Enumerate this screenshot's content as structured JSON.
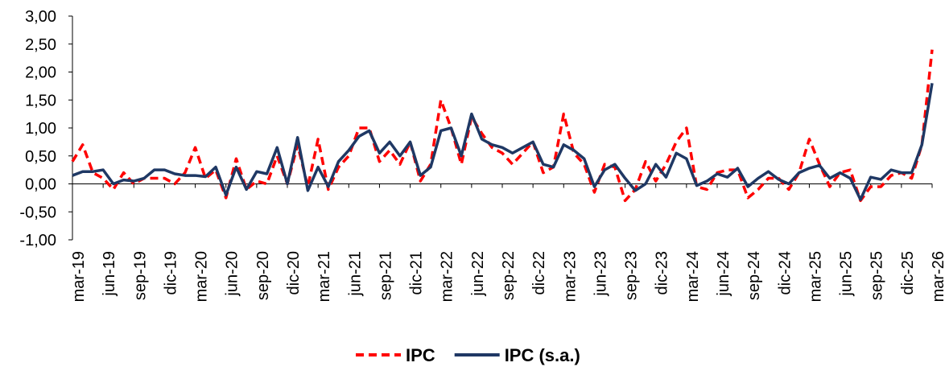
{
  "chart_data": {
    "type": "line",
    "categories": [
      "mar-19",
      null,
      null,
      "jun-19",
      null,
      null,
      "sep-19",
      null,
      null,
      "dic-19",
      null,
      null,
      "mar-20",
      null,
      null,
      "jun-20",
      null,
      null,
      "sep-20",
      null,
      null,
      "dic-20",
      null,
      null,
      "mar-21",
      null,
      null,
      "jun-21",
      null,
      null,
      "sep-21",
      null,
      null,
      "dic-21",
      null,
      null,
      "mar-22",
      null,
      null,
      "jun-22",
      null,
      null,
      "sep-22",
      null,
      null,
      "dic-22",
      null,
      null,
      "mar-23",
      null,
      null,
      "jun-23",
      null,
      null,
      "sep-23",
      null,
      null,
      "dic-23",
      null,
      null,
      "mar-24",
      null,
      null,
      "jun-24",
      null,
      null,
      "sep-24",
      null,
      null,
      "dic-24",
      null,
      null,
      "mar-25",
      null,
      null,
      "jun-25",
      null,
      null,
      "sep-25",
      null,
      null,
      "dic-25",
      null,
      null,
      "mar-26"
    ],
    "series": [
      {
        "name": "IPC",
        "color": "#ff0000",
        "dashed": true,
        "values": [
          0.4,
          0.7,
          0.2,
          0.1,
          -0.1,
          0.2,
          0.0,
          0.1,
          0.1,
          0.1,
          0.0,
          0.2,
          0.65,
          0.1,
          0.25,
          -0.25,
          0.45,
          -0.1,
          0.05,
          0.0,
          0.5,
          0.0,
          0.7,
          -0.05,
          0.8,
          -0.1,
          0.3,
          0.5,
          1.0,
          1.0,
          0.4,
          0.6,
          0.35,
          0.75,
          0.05,
          0.35,
          1.5,
          1.0,
          0.35,
          1.2,
          0.9,
          0.65,
          0.55,
          0.35,
          0.55,
          0.75,
          0.2,
          0.3,
          1.25,
          0.55,
          0.35,
          -0.15,
          0.35,
          0.3,
          -0.3,
          -0.1,
          0.4,
          0.05,
          0.35,
          0.75,
          1.0,
          -0.05,
          -0.1,
          0.2,
          0.25,
          0.25,
          -0.25,
          -0.1,
          0.1,
          0.1,
          -0.1,
          0.2,
          0.8,
          0.35,
          -0.05,
          0.2,
          0.25,
          -0.3,
          -0.05,
          -0.05,
          0.15,
          0.2,
          0.1,
          0.7,
          2.4
        ]
      },
      {
        "name": "IPC (s.a.)",
        "color": "#1f3864",
        "dashed": false,
        "values": [
          0.15,
          0.22,
          0.22,
          0.25,
          0.0,
          0.07,
          0.05,
          0.1,
          0.25,
          0.25,
          0.18,
          0.15,
          0.15,
          0.13,
          0.3,
          -0.2,
          0.3,
          -0.1,
          0.22,
          0.18,
          0.65,
          0.0,
          0.83,
          -0.12,
          0.3,
          -0.05,
          0.4,
          0.6,
          0.85,
          0.95,
          0.55,
          0.75,
          0.5,
          0.75,
          0.15,
          0.3,
          0.95,
          1.0,
          0.5,
          1.25,
          0.8,
          0.7,
          0.65,
          0.55,
          0.65,
          0.75,
          0.35,
          0.3,
          0.7,
          0.6,
          0.45,
          -0.05,
          0.25,
          0.35,
          0.1,
          -0.12,
          0.0,
          0.35,
          0.12,
          0.55,
          0.45,
          -0.03,
          0.05,
          0.18,
          0.12,
          0.28,
          -0.05,
          0.1,
          0.22,
          0.08,
          0.0,
          0.2,
          0.28,
          0.33,
          0.1,
          0.2,
          0.1,
          -0.28,
          0.12,
          0.08,
          0.25,
          0.2,
          0.2,
          0.7,
          1.8
        ]
      }
    ],
    "ylim": [
      -1,
      3
    ],
    "yticks": [
      {
        "value": -1,
        "label": "-1,00"
      },
      {
        "value": -0.5,
        "label": "-0,50"
      },
      {
        "value": 0,
        "label": "0,00"
      },
      {
        "value": 0.5,
        "label": "0,50"
      },
      {
        "value": 1,
        "label": "1,00"
      },
      {
        "value": 1.5,
        "label": "1,50"
      },
      {
        "value": 2,
        "label": "2,00"
      },
      {
        "value": 2.5,
        "label": "2,50"
      },
      {
        "value": 3,
        "label": "3,00"
      }
    ],
    "legend": "bottom"
  }
}
